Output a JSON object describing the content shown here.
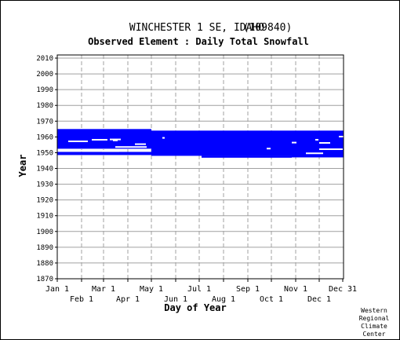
{
  "chart_data": {
    "type": "scatter",
    "title": "WINCHESTER 1 SE, IDAHO",
    "station_id": "(109840)",
    "subtitle": "Observed Element : Daily Total Snowfall",
    "xlabel": "Day of Year",
    "ylabel": "Year",
    "ylim": [
      1870,
      2012
    ],
    "y_ticks": [
      1870,
      1880,
      1890,
      1900,
      1910,
      1920,
      1930,
      1940,
      1950,
      1960,
      1970,
      1980,
      1990,
      2000,
      2010
    ],
    "xlim": [
      1,
      366
    ],
    "x_ticks_upper": [
      {
        "label": "Jan 1",
        "day": 1
      },
      {
        "label": "Mar 1",
        "day": 60
      },
      {
        "label": "May 1",
        "day": 121
      },
      {
        "label": "Jul 1",
        "day": 182
      },
      {
        "label": "Sep 1",
        "day": 244
      },
      {
        "label": "Nov 1",
        "day": 305
      },
      {
        "label": "Dec 31",
        "day": 365
      }
    ],
    "x_ticks_lower": [
      {
        "label": "Feb 1",
        "day": 32
      },
      {
        "label": "Apr 1",
        "day": 91
      },
      {
        "label": "Jun 1",
        "day": 152
      },
      {
        "label": "Aug 1",
        "day": 213
      },
      {
        "label": "Oct 1",
        "day": 274
      },
      {
        "label": "Dec 1",
        "day": 335
      }
    ],
    "grid": true,
    "color": "#0000ff",
    "series": [
      {
        "values": [
          {
            "start_day": 1,
            "end_day": 121,
            "start_year": 1952.5,
            "end_year": 1965
          },
          {
            "start_day": 1,
            "end_day": 121,
            "start_year": 1948.5,
            "end_year": 1950.5
          },
          {
            "start_day": 121,
            "end_day": 366,
            "start_year": 1948,
            "end_year": 1964
          },
          {
            "start_day": 185,
            "end_day": 300,
            "start_year": 1946.8,
            "end_year": 1948
          },
          {
            "start_day": 300,
            "end_day": 366,
            "start_year": 1947,
            "end_year": 1948.5
          }
        ]
      }
    ],
    "gaps": [
      {
        "day": 10,
        "year": 1951.2,
        "days": 55
      },
      {
        "day": 15,
        "year": 1957.2,
        "days": 25
      },
      {
        "day": 45,
        "year": 1958.2,
        "days": 20
      },
      {
        "day": 68,
        "year": 1958.4,
        "days": 14
      },
      {
        "day": 72,
        "year": 1957.8,
        "days": 6
      },
      {
        "day": 100,
        "year": 1955.4,
        "days": 14
      },
      {
        "day": 75,
        "year": 1953.6,
        "days": 40
      },
      {
        "day": 58,
        "year": 1951.0,
        "days": 22
      },
      {
        "day": 135,
        "year": 1959.4,
        "days": 3
      },
      {
        "day": 268,
        "year": 1952.6,
        "days": 5
      },
      {
        "day": 300,
        "year": 1956.4,
        "days": 6
      },
      {
        "day": 330,
        "year": 1958.2,
        "days": 4
      },
      {
        "day": 335,
        "year": 1956.2,
        "days": 14
      },
      {
        "day": 335,
        "year": 1952.2,
        "days": 30
      },
      {
        "day": 318,
        "year": 1949.6,
        "days": 22
      },
      {
        "day": 360,
        "year": 1960.2,
        "days": 6
      }
    ]
  },
  "credit": "Western\nRegional\nClimate\nCenter"
}
